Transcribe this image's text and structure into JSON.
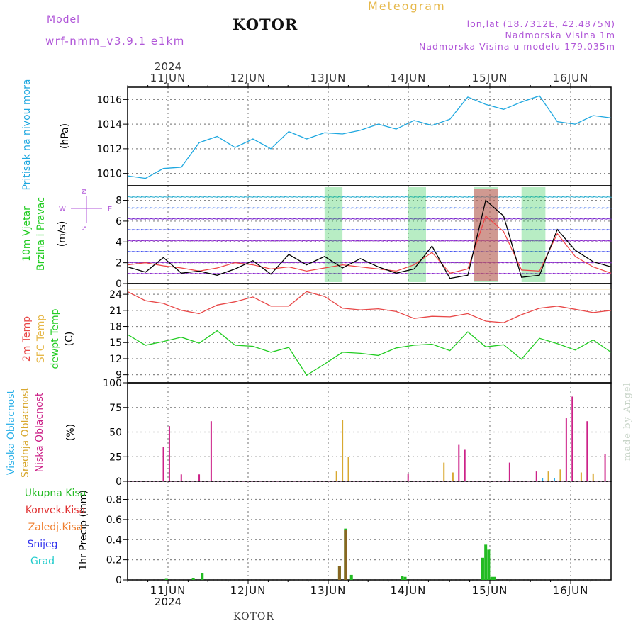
{
  "header": {
    "model_label": "Model",
    "model_name": "wrf-nmm_v3.9.1 e1km",
    "station": "KOTOR",
    "title": "Meteogram",
    "lonlat": "lon,lat (18.7312E, 42.4875N)",
    "elevation": "Nadmorska Visina 1m",
    "model_elevation": "Nadmorska Visina u modelu 179.035m"
  },
  "time_axis": {
    "year": "2024",
    "days": [
      "11JUN",
      "12JUN",
      "13JUN",
      "14JUN",
      "15JUN",
      "16JUN"
    ]
  },
  "footer": {
    "station": "KOTOR",
    "watermark": "made by Angel"
  },
  "colors": {
    "pressure": "#1fa8e0",
    "temp": "#e84848",
    "sfc": "#e6b84a",
    "dewpt": "#22cc22",
    "wind_black": "#000000",
    "high_cloud": "#2ab0e8",
    "mid_cloud": "#d8a830",
    "low_cloud": "#cc2288",
    "precip": "#22bb22",
    "conv": "#e03030",
    "grid": "#888888"
  },
  "chart_data": [
    {
      "type": "line",
      "ylabel_lines": [
        "Pritisak na nivou mora",
        "(hPa)"
      ],
      "ylim": [
        1009,
        1017
      ],
      "yticks": [
        "1010",
        "1012",
        "1014",
        "1016"
      ],
      "x": [
        0,
        6,
        12,
        18,
        24,
        30,
        36,
        42,
        48,
        54,
        60,
        66,
        72,
        78,
        84,
        90,
        96,
        102,
        108,
        114,
        120,
        126,
        132,
        138,
        144,
        150,
        156,
        162
      ],
      "series": [
        {
          "values": [
            1009.8,
            1009.6,
            1010.4,
            1010.5,
            1012.5,
            1013.0,
            1012.1,
            1012.8,
            1012.0,
            1013.4,
            1012.8,
            1013.3,
            1013.2,
            1013.5,
            1014.0,
            1013.6,
            1014.3,
            1013.9,
            1014.4,
            1016.2,
            1015.6,
            1015.2,
            1015.8,
            1016.3,
            1014.2,
            1014.0,
            1014.7,
            1014.5
          ]
        }
      ]
    },
    {
      "type": "line",
      "ylabel_lines": [
        "10m Vjetar",
        "Brzina i Pravac",
        "(m/s)"
      ],
      "compass": [
        "N",
        "E",
        "S",
        "W"
      ],
      "ylim": [
        0,
        9.4
      ],
      "yticks": [
        "0",
        "2",
        "4",
        "6",
        "8"
      ],
      "x": [
        0,
        6,
        12,
        18,
        24,
        30,
        36,
        42,
        48,
        54,
        60,
        66,
        72,
        78,
        84,
        90,
        96,
        102,
        108,
        114,
        120,
        126,
        132,
        138,
        144,
        150,
        156,
        162
      ],
      "series": [
        {
          "values": [
            1.6,
            1.1,
            2.5,
            1.0,
            1.2,
            0.8,
            1.4,
            2.2,
            0.9,
            2.8,
            1.8,
            2.6,
            1.5,
            2.4,
            1.6,
            1.0,
            1.4,
            3.6,
            0.5,
            0.8,
            8.0,
            6.5,
            0.6,
            0.8,
            5.2,
            3.2,
            2.1,
            1.6
          ]
        },
        {
          "values": [
            1.8,
            2.0,
            1.7,
            1.5,
            1.2,
            1.5,
            2.0,
            1.8,
            1.4,
            1.6,
            1.2,
            1.5,
            1.8,
            1.6,
            1.4,
            1.2,
            1.8,
            3.0,
            1.0,
            1.4,
            6.5,
            5.0,
            1.3,
            1.2,
            4.8,
            2.6,
            1.6,
            1.0
          ]
        }
      ]
    },
    {
      "type": "line",
      "ylabel_lines": [
        "2m Temp",
        "SFC Temp",
        "dewpt Temp",
        "(C)"
      ],
      "ylim": [
        7.5,
        26
      ],
      "yticks": [
        "9",
        "12",
        "15",
        "18",
        "21",
        "24"
      ],
      "x": [
        0,
        6,
        12,
        18,
        24,
        30,
        36,
        42,
        48,
        54,
        60,
        66,
        72,
        78,
        84,
        90,
        96,
        102,
        108,
        114,
        120,
        126,
        132,
        138,
        144,
        150,
        156,
        162
      ],
      "series": [
        {
          "name": "SFC Temp",
          "values": [
            25,
            25,
            25,
            25,
            25,
            25,
            25,
            25,
            25,
            25,
            25,
            25,
            25,
            25,
            25,
            25,
            25,
            25,
            25,
            25,
            25,
            25,
            25,
            25,
            25,
            25,
            25,
            25
          ]
        },
        {
          "name": "2m Temp",
          "values": [
            24.5,
            22.8,
            22.3,
            21.0,
            20.4,
            22.0,
            22.6,
            23.5,
            21.8,
            21.8,
            24.5,
            23.6,
            21.4,
            21.1,
            21.3,
            20.8,
            19.5,
            19.9,
            19.8,
            20.4,
            19.0,
            18.7,
            20.2,
            21.4,
            21.8,
            21.2,
            20.6,
            21.0
          ]
        },
        {
          "name": "dewpt Temp",
          "values": [
            16.5,
            14.5,
            15.2,
            16.0,
            14.9,
            17.2,
            14.5,
            14.3,
            13.2,
            14.1,
            8.9,
            11.0,
            13.2,
            13.0,
            12.6,
            14.0,
            14.5,
            14.7,
            13.5,
            17.0,
            14.2,
            14.6,
            11.9,
            15.8,
            14.8,
            13.6,
            15.5,
            13.2
          ]
        }
      ]
    },
    {
      "type": "bar",
      "ylabel_lines": [
        "Visoka Oblacnost",
        "Srednja Oblacnost",
        "Niska Oblacnost",
        "(%)"
      ],
      "ylim": [
        0,
        100
      ],
      "yticks": [
        "0",
        "25",
        "50",
        "75",
        "100"
      ],
      "series": [
        {
          "name": "Niska Oblacnost",
          "bars": [
            [
              12,
              35
            ],
            [
              14,
              56
            ],
            [
              18,
              7
            ],
            [
              24,
              7
            ],
            [
              28,
              61
            ],
            [
              94,
              8
            ],
            [
              111,
              37
            ],
            [
              113,
              32
            ],
            [
              128,
              19
            ],
            [
              137,
              10
            ],
            [
              147,
              64
            ],
            [
              149,
              86
            ],
            [
              154,
              61
            ],
            [
              160,
              28
            ]
          ]
        },
        {
          "name": "Srednja Oblacnost",
          "bars": [
            [
              70,
              10
            ],
            [
              72,
              62
            ],
            [
              74,
              25
            ],
            [
              106,
              19
            ],
            [
              109,
              9
            ],
            [
              141,
              10
            ],
            [
              145,
              12
            ],
            [
              152,
              9
            ],
            [
              156,
              8
            ]
          ]
        },
        {
          "name": "Visoka Oblacnost",
          "bars": [
            [
              139,
              3
            ],
            [
              143,
              3
            ]
          ]
        }
      ]
    },
    {
      "type": "bar",
      "ylabel_lines": [
        "1hr Precip",
        "(mm)"
      ],
      "legend": [
        "Ukupna Kisa",
        "Konvek.Kisa",
        "Zaledj.Kisa",
        "Snijeg",
        "Grad"
      ],
      "ylim": [
        0,
        0.98
      ],
      "yticks": [
        "0",
        "0.2",
        "0.4",
        "0.6",
        "0.8"
      ],
      "series": [
        {
          "name": "Ukupna Kisa",
          "bars": [
            [
              13,
              0.01
            ],
            [
              22,
              0.02
            ],
            [
              25,
              0.07
            ],
            [
              71,
              0.14
            ],
            [
              73,
              0.51
            ],
            [
              75,
              0.05
            ],
            [
              92,
              0.04
            ],
            [
              93,
              0.03
            ],
            [
              119,
              0.22
            ],
            [
              120,
              0.35
            ],
            [
              121,
              0.3
            ],
            [
              122,
              0.03
            ],
            [
              123,
              0.03
            ]
          ]
        },
        {
          "name": "Konvek.Kisa",
          "bars": [
            [
              71,
              0.14
            ],
            [
              73,
              0.5
            ]
          ]
        }
      ]
    }
  ]
}
